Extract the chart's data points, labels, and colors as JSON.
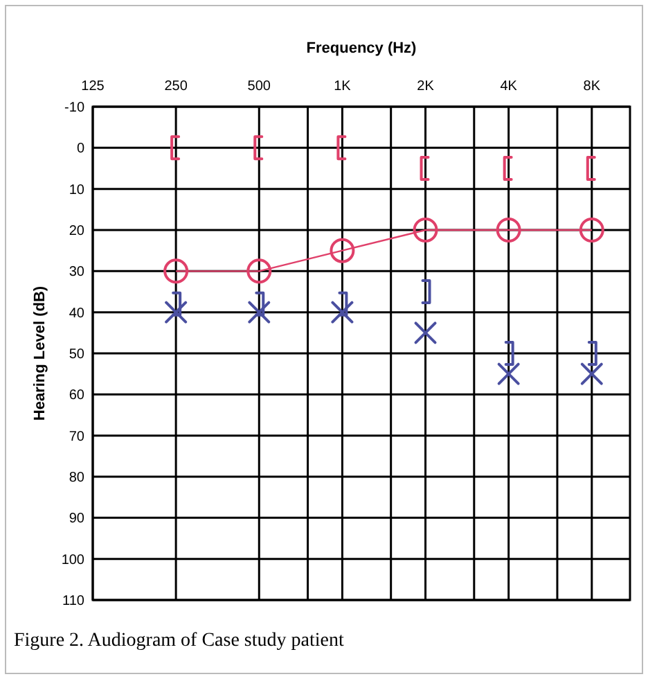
{
  "chart_data": {
    "type": "scatter",
    "title": "Frequency (Hz)",
    "ylabel": "Hearing Level (dB)",
    "annotations": [
      "Figure 2. Audiogram of Case study patient"
    ],
    "log": "x",
    "xlim": [
      125,
      11000
    ],
    "xticks": [
      125,
      250,
      500,
      {
        "value": 750,
        "label": null
      },
      {
        "value": 1000,
        "label": "1K"
      },
      {
        "value": 1500,
        "label": null
      },
      {
        "value": 2000,
        "label": "2K"
      },
      {
        "value": 3000,
        "label": null
      },
      {
        "value": 4000,
        "label": "4K"
      },
      {
        "value": 6000,
        "label": null
      },
      {
        "value": 8000,
        "label": "8K"
      }
    ],
    "ylim": [
      110,
      -10
    ],
    "yticks": [
      -10,
      0,
      10,
      20,
      30,
      40,
      50,
      60,
      70,
      80,
      90,
      100,
      110
    ],
    "grid": true,
    "x": [
      250,
      500,
      1000,
      2000,
      4000,
      8000
    ],
    "series": [
      {
        "type": "line",
        "marker": "circle",
        "line_style": "solid",
        "color": "#e0406a",
        "values": [
          30,
          30,
          25,
          20,
          20,
          20
        ]
      },
      {
        "color": "#e0406a",
        "values": [
          0,
          0,
          0,
          5,
          5,
          5
        ]
      },
      {
        "marker": "cross",
        "color": "#4a4fa0",
        "values": [
          40,
          40,
          40,
          45,
          55,
          55
        ]
      },
      {
        "color": "#4a4fa0",
        "values": [
          38,
          38,
          38,
          35,
          50,
          50
        ]
      }
    ]
  }
}
